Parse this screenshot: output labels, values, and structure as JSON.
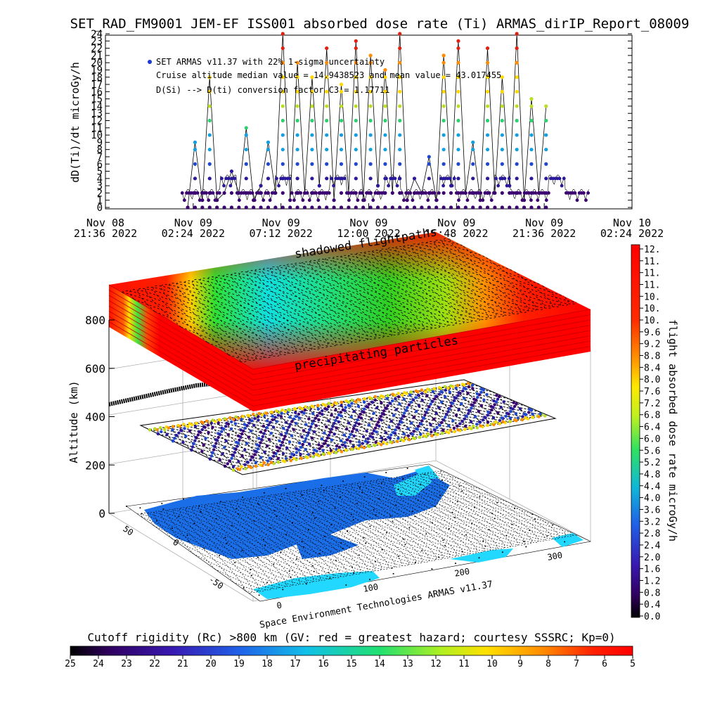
{
  "title": "SET_RAD_FM9001  JEM-EF ISS001 absorbed dose rate (Ti) ARMAS_dirIP_Report_08009",
  "chart_data": [
    {
      "type": "line",
      "ylabel": "dD(Ti)/dt microGy/h",
      "ylim": [
        0,
        24
      ],
      "yticks": [
        "0",
        "1",
        "2",
        "3",
        "4",
        "5",
        "6",
        "7",
        "8",
        "9",
        "10",
        "11",
        "12",
        "13",
        "14",
        "15",
        "16",
        "17",
        "18",
        "19",
        "20",
        "21",
        "22",
        "23",
        "24"
      ],
      "xticks": [
        {
          "line1": "Nov 08",
          "line2": "21:36 2022"
        },
        {
          "line1": "Nov 09",
          "line2": "02:24 2022"
        },
        {
          "line1": "Nov 09",
          "line2": "07:12 2022"
        },
        {
          "line1": "Nov 09",
          "line2": "12:00 2022"
        },
        {
          "line1": "Nov 09",
          "line2": "16:48 2022"
        },
        {
          "line1": "Nov 09",
          "line2": "21:36 2022"
        },
        {
          "line1": "Nov 10",
          "line2": "02:24 2022"
        }
      ],
      "xlim_hours": [
        0,
        28.8
      ],
      "legend": [
        "SET ARMAS v11.37 with 22% 1-sigma uncertainty",
        "Cruise altitude median value = 14.9438523 and mean value = 43.017455",
        "D(Si) --> D(ti) conversion factor C3 = 1.17711"
      ],
      "series": [
        {
          "x_hours": [
            4.5,
            4.9,
            5.3,
            5.7,
            6.1,
            6.5,
            6.9,
            7.3,
            7.7,
            8.1,
            8.5,
            8.9,
            9.3,
            9.7,
            10.1,
            10.5,
            10.9,
            11.3,
            11.7,
            12.1,
            12.5,
            12.9,
            13.3,
            13.7,
            14.1,
            14.5,
            14.9,
            15.3,
            15.7,
            16.1,
            16.5,
            16.9,
            17.3,
            17.7,
            18.1,
            18.5,
            18.9,
            19.3,
            19.7,
            20.1,
            20.5,
            20.9,
            21.3,
            21.7,
            22.1,
            22.5,
            22.9,
            23.3,
            23.7,
            24.1
          ],
          "values": [
            0,
            9,
            1,
            18,
            1,
            2,
            5,
            2,
            11,
            1,
            3,
            9,
            2,
            24,
            1,
            20,
            2,
            18,
            3,
            22,
            1,
            17,
            2,
            23,
            1,
            21,
            3,
            19,
            2,
            24,
            1,
            4,
            2,
            7,
            1,
            21,
            3,
            23,
            2,
            9,
            1,
            22,
            2,
            18,
            3,
            24,
            1,
            15,
            2,
            14
          ]
        }
      ]
    },
    {
      "type": "heatmap",
      "zlabel": "Altitude (km)",
      "zticks": [
        "0",
        "200",
        "400",
        "600",
        "800"
      ],
      "lat_ticks": [
        "0",
        "-50",
        "50"
      ],
      "lon_ticks": [
        "0",
        "100",
        "200",
        "300"
      ],
      "layers": [
        "shadowed flightpaths",
        "precipitating particles"
      ],
      "credit": "Space Environment Technologies ARMAS v11.37"
    }
  ],
  "colorbar_right": {
    "label": "flight absorbed dose rate microGy/h",
    "ticks": [
      "12.",
      "11.",
      "11.",
      "11.",
      "10.",
      "10.",
      "10.",
      "9.6",
      "9.2",
      "8.8",
      "8.4",
      "8.0",
      "7.6",
      "7.2",
      "6.8",
      "6.4",
      "6.0",
      "5.6",
      "5.2",
      "4.8",
      "4.4",
      "4.0",
      "3.6",
      "3.2",
      "2.8",
      "2.4",
      "2.0",
      "1.6",
      "1.2",
      "0.8",
      "0.4",
      "0.0"
    ]
  },
  "colorbar_bottom": {
    "label": "Cutoff rigidity (Rc) >800 km (GV: red = greatest hazard; courtesy SSSRC; Kp=0)",
    "ticks": [
      "25",
      "24",
      "23",
      "22",
      "21",
      "20",
      "19",
      "18",
      "17",
      "16",
      "15",
      "14",
      "13",
      "12",
      "11",
      "10",
      "9",
      "8",
      "7",
      "6",
      "5"
    ]
  },
  "colors": {
    "dots_palette": [
      "#3a0070",
      "#2a1a9a",
      "#1f48d0",
      "#14a0e0",
      "#30d070",
      "#b8e020",
      "#ffd800",
      "#ff8c00",
      "#e02010",
      "#000000"
    ],
    "land": "#1a6ee8",
    "ocean_ice": "#22d8ff"
  }
}
